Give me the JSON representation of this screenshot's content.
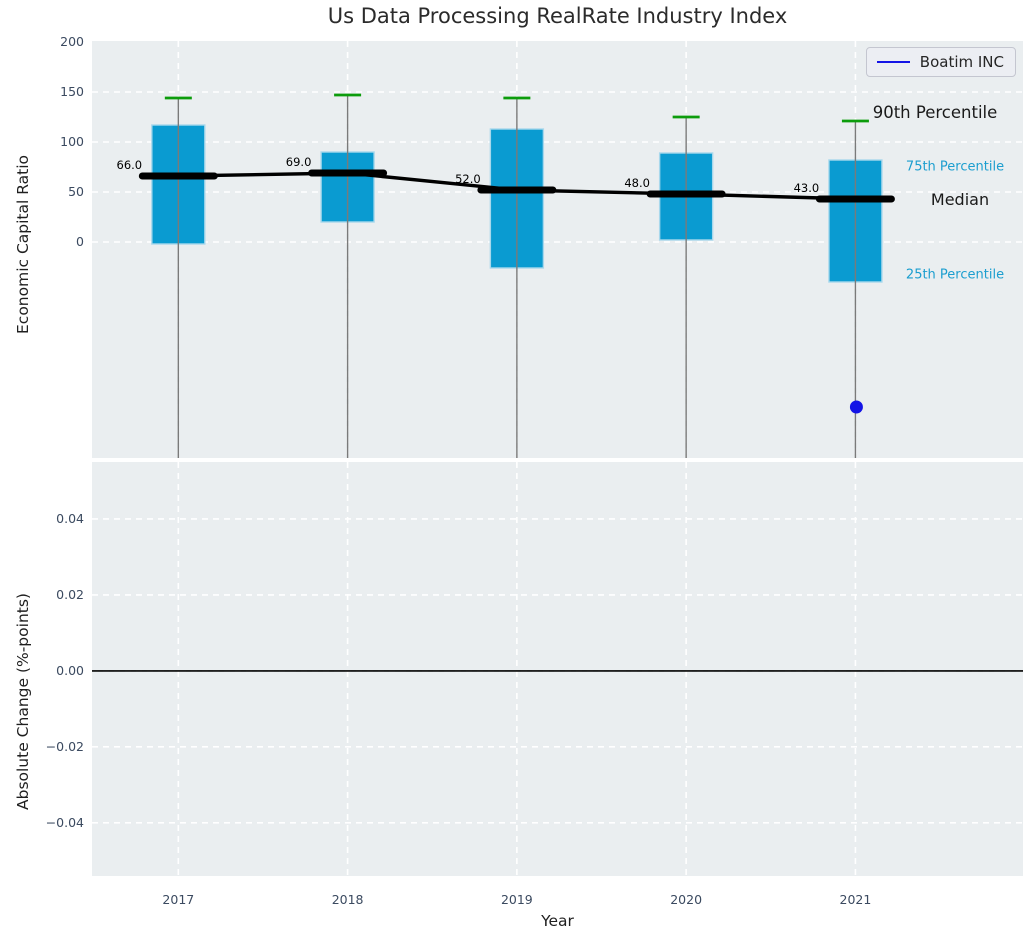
{
  "title": "Us Data Processing RealRate Industry Index",
  "legend": {
    "label": "Boatim INC"
  },
  "colors": {
    "axes_bg": "#eaeef0",
    "grid": "#ffffff",
    "box_fill": "#0a9bd1",
    "box_edge": "#a8d8ec",
    "cap_green": "#0c9c0c",
    "whisker_gray": "#7a7a7a",
    "median_black": "#000000",
    "company_blue": "#1414e6",
    "tick_text": "#3b4a60",
    "cyan_text": "#1b9ecf",
    "dark_text": "#1f1f1f"
  },
  "chart_data": [
    {
      "id": "top",
      "type": "boxplot-with-median-line",
      "title": "Us Data Processing RealRate Industry Index",
      "ylabel": "Economic Capital Ratio",
      "yticks": [
        200,
        150,
        100,
        50,
        0
      ],
      "ytick_labels": [
        "200",
        "150",
        "100",
        "50",
        "0"
      ],
      "ylim": [
        -216,
        201
      ],
      "xlim": [
        2016.49,
        2021.99
      ],
      "grid_values": [
        150,
        100,
        50,
        0
      ],
      "years": [
        2017,
        2018,
        2019,
        2020,
        2021
      ],
      "boxes": [
        {
          "year": 2017,
          "p90": 144,
          "q3": 117,
          "median": 66,
          "q1": -2,
          "median_label": "66.0"
        },
        {
          "year": 2018,
          "p90": 147,
          "q3": 90,
          "median": 69,
          "q1": 20,
          "median_label": "69.0"
        },
        {
          "year": 2019,
          "p90": 144,
          "q3": 113,
          "median": 52,
          "q1": -26,
          "median_label": "52.0"
        },
        {
          "year": 2020,
          "p90": 125,
          "q3": 89,
          "median": 48,
          "q1": 2,
          "median_label": "48.0"
        },
        {
          "year": 2021,
          "p90": 121,
          "q3": 82,
          "median": 43,
          "q1": -40,
          "median_label": "43.0"
        }
      ],
      "whiskers_clipped_below": true,
      "company_point": {
        "name": "Boatim INC",
        "year": 2021,
        "value": -165
      },
      "annotations": [
        {
          "text": "90th Percentile",
          "x_fig": 935,
          "value": 130,
          "color": "dark",
          "size": 16.5
        },
        {
          "text": "75th Percentile",
          "x_fig": 955,
          "value": 76,
          "color": "cyan",
          "size": 13
        },
        {
          "text": "Median",
          "x_fig": 960,
          "value": 43,
          "color": "dark",
          "size": 16
        },
        {
          "text": "25th Percentile",
          "x_fig": 955,
          "value": -32,
          "color": "cyan",
          "size": 13
        }
      ],
      "legend_position": "upper right"
    },
    {
      "id": "bottom",
      "type": "line",
      "ylabel": "Absolute Change (%-points)",
      "xlabel": "Year",
      "yticks": [
        0.04,
        0.02,
        0,
        -0.02,
        -0.04
      ],
      "ytick_labels": [
        "0.04",
        "0.02",
        "0.00",
        "−0.02",
        "−0.04"
      ],
      "ylim": [
        -0.054,
        0.055
      ],
      "xlim": [
        2016.49,
        2021.99
      ],
      "years": [
        2017,
        2018,
        2019,
        2020,
        2021
      ],
      "xtick_labels": [
        "2017",
        "2018",
        "2019",
        "2020",
        "2021"
      ],
      "zero_line": true,
      "series": []
    }
  ]
}
